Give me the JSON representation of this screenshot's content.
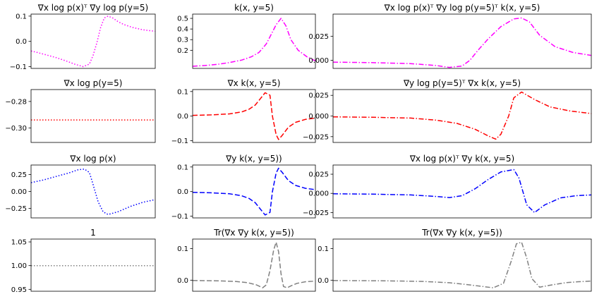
{
  "chart_data": [
    {
      "type": "line",
      "title": "∇x log p(x)ᵀ ∇y log p(y=5)",
      "ylim": [
        -0.107,
        0.108
      ],
      "yticks": [
        -0.1,
        0.0,
        0.1
      ],
      "ytick_labels": [
        "−0.1",
        "0.0",
        "0.1"
      ],
      "grid": false,
      "series": [
        {
          "color": "#ff00ff",
          "linestyle": "dotted",
          "x": [
            0,
            0.05,
            0.12,
            0.2,
            0.28,
            0.35,
            0.42,
            0.47,
            0.5,
            0.53,
            0.56,
            0.59,
            0.62,
            0.66,
            0.7,
            0.75,
            0.82,
            0.9,
            1.0
          ],
          "y": [
            -0.038,
            -0.044,
            -0.053,
            -0.064,
            -0.077,
            -0.09,
            -0.1,
            -0.09,
            -0.055,
            -0.005,
            0.055,
            0.093,
            0.1,
            0.092,
            0.078,
            0.066,
            0.055,
            0.046,
            0.04
          ]
        }
      ]
    },
    {
      "type": "line",
      "title": "k(x, y=5)",
      "ylim": [
        0.03,
        0.54
      ],
      "yticks": [
        0.2,
        0.3,
        0.4,
        0.5
      ],
      "ytick_labels": [
        "0.2",
        "0.3",
        "0.4",
        "0.5"
      ],
      "grid": false,
      "series": [
        {
          "color": "#ff00ff",
          "linestyle": "dashdot",
          "x": [
            0,
            0.1,
            0.2,
            0.3,
            0.4,
            0.48,
            0.54,
            0.6,
            0.64,
            0.68,
            0.72,
            0.76,
            0.8,
            0.86,
            0.93,
            1.0
          ],
          "y": [
            0.05,
            0.057,
            0.068,
            0.085,
            0.108,
            0.14,
            0.18,
            0.26,
            0.35,
            0.44,
            0.5,
            0.43,
            0.3,
            0.2,
            0.14,
            0.1
          ]
        }
      ]
    },
    {
      "type": "line",
      "title": "∇x log p(x)ᵀ ∇y log p(y=5)ᵀ k(x, y=5)",
      "ylim": [
        -0.0085,
        0.048
      ],
      "yticks": [
        0.0,
        0.025
      ],
      "ytick_labels": [
        "0.000",
        "0.025"
      ],
      "grid": false,
      "series": [
        {
          "color": "#ff00ff",
          "linestyle": "dashdot",
          "x": [
            0,
            0.15,
            0.3,
            0.4,
            0.45,
            0.5,
            0.53,
            0.56,
            0.6,
            0.65,
            0.7,
            0.73,
            0.76,
            0.8,
            0.86,
            0.93,
            1.0
          ],
          "y": [
            -0.002,
            -0.0025,
            -0.0035,
            -0.0055,
            -0.0075,
            -0.006,
            0.0,
            0.01,
            0.022,
            0.035,
            0.043,
            0.044,
            0.04,
            0.026,
            0.014,
            0.008,
            0.005
          ]
        }
      ]
    },
    {
      "type": "line",
      "title": "∇x log p(y=5)",
      "ylim": [
        -0.311,
        -0.271
      ],
      "yticks": [
        -0.3,
        -0.28
      ],
      "ytick_labels": [
        "−0.30",
        "−0.28"
      ],
      "grid": false,
      "series": [
        {
          "color": "#ff0000",
          "linestyle": "dotted",
          "x": [
            0,
            1.0
          ],
          "y": [
            -0.294,
            -0.294
          ]
        }
      ]
    },
    {
      "type": "line",
      "title": "∇x k(x, y=5)",
      "ylim": [
        -0.107,
        0.108
      ],
      "yticks": [
        -0.1,
        0.0,
        0.1
      ],
      "ytick_labels": [
        "−0.1",
        "0.0",
        "0.1"
      ],
      "grid": false,
      "series": [
        {
          "color": "#ff0000",
          "linestyle": "dashed",
          "x": [
            0,
            0.15,
            0.3,
            0.4,
            0.46,
            0.51,
            0.55,
            0.59,
            0.63,
            0.65,
            0.68,
            0.7,
            0.73,
            0.78,
            0.84,
            0.92,
            1.0
          ],
          "y": [
            0.003,
            0.005,
            0.009,
            0.017,
            0.028,
            0.045,
            0.07,
            0.095,
            0.085,
            0.0,
            -0.075,
            -0.095,
            -0.078,
            -0.045,
            -0.025,
            -0.013,
            -0.008
          ]
        }
      ]
    },
    {
      "type": "line",
      "title": "∇y log p(y=5)ᵀ ∇x k(x, y=5)",
      "ylim": [
        -0.032,
        0.032
      ],
      "yticks": [
        -0.025,
        0.0,
        0.025
      ],
      "ytick_labels": [
        "−0.025",
        "0.000",
        "0.025"
      ],
      "grid": false,
      "series": [
        {
          "color": "#ff0000",
          "linestyle": "dashdot",
          "x": [
            0,
            0.15,
            0.3,
            0.4,
            0.48,
            0.55,
            0.6,
            0.63,
            0.65,
            0.68,
            0.7,
            0.73,
            0.78,
            0.84,
            0.92,
            1.0
          ],
          "y": [
            -0.001,
            -0.0015,
            -0.0025,
            -0.005,
            -0.009,
            -0.016,
            -0.024,
            -0.028,
            -0.022,
            0.0,
            0.022,
            0.029,
            0.02,
            0.011,
            0.006,
            0.003
          ]
        }
      ]
    },
    {
      "type": "line",
      "title": "∇x log p(x)",
      "ylim": [
        -0.39,
        0.39
      ],
      "yticks": [
        -0.25,
        0.0,
        0.25
      ],
      "ytick_labels": [
        "−0.25",
        "0.00",
        "0.25"
      ],
      "grid": false,
      "series": [
        {
          "color": "#0000ff",
          "linestyle": "dotted",
          "x": [
            0,
            0.1,
            0.2,
            0.3,
            0.38,
            0.43,
            0.47,
            0.5,
            0.54,
            0.58,
            0.62,
            0.7,
            0.8,
            0.9,
            1.0
          ],
          "y": [
            0.13,
            0.17,
            0.22,
            0.27,
            0.32,
            0.33,
            0.28,
            0.1,
            -0.15,
            -0.3,
            -0.34,
            -0.3,
            -0.22,
            -0.16,
            -0.12
          ]
        }
      ]
    },
    {
      "type": "line",
      "title": "∇y k(x, y=5))",
      "ylim": [
        -0.107,
        0.108
      ],
      "yticks": [
        -0.1,
        0.0,
        0.1
      ],
      "ytick_labels": [
        "−0.1",
        "0.0",
        "0.1"
      ],
      "grid": false,
      "series": [
        {
          "color": "#0000ff",
          "linestyle": "dashed",
          "x": [
            0,
            0.15,
            0.3,
            0.4,
            0.46,
            0.51,
            0.55,
            0.59,
            0.63,
            0.65,
            0.68,
            0.7,
            0.73,
            0.78,
            0.84,
            0.92,
            1.0
          ],
          "y": [
            -0.003,
            -0.005,
            -0.009,
            -0.017,
            -0.028,
            -0.045,
            -0.07,
            -0.095,
            -0.085,
            0.0,
            0.075,
            0.095,
            0.078,
            0.045,
            0.025,
            0.013,
            0.008
          ]
        }
      ]
    },
    {
      "type": "line",
      "title": "∇x log p(x)ᵀ ∇y k(x, y=5)",
      "ylim": [
        -0.032,
        0.037
      ],
      "yticks": [
        -0.025,
        0.0,
        0.025
      ],
      "ytick_labels": [
        "−0.025",
        "0.000",
        "0.025"
      ],
      "grid": false,
      "series": [
        {
          "color": "#0000ff",
          "linestyle": "dashdot",
          "x": [
            0,
            0.15,
            0.3,
            0.4,
            0.45,
            0.5,
            0.55,
            0.6,
            0.65,
            0.7,
            0.72,
            0.75,
            0.78,
            0.82,
            0.88,
            0.94,
            1.0
          ],
          "y": [
            -0.0005,
            -0.001,
            -0.002,
            -0.004,
            -0.0055,
            -0.003,
            0.006,
            0.018,
            0.028,
            0.031,
            0.02,
            -0.015,
            -0.025,
            -0.015,
            -0.006,
            -0.003,
            -0.002
          ]
        }
      ]
    },
    {
      "type": "line",
      "title": "1",
      "ylim": [
        0.946,
        1.056
      ],
      "yticks": [
        0.95,
        1.0,
        1.05
      ],
      "ytick_labels": [
        "0.95",
        "1.00",
        "1.05"
      ],
      "grid": false,
      "series": [
        {
          "color": "#808080",
          "linestyle": "dotted",
          "x": [
            0,
            1.0
          ],
          "y": [
            1.0,
            1.0
          ]
        }
      ]
    },
    {
      "type": "line",
      "title": "Tr(∇x ∇y k(x, y=5))",
      "ylim": [
        -0.035,
        0.13
      ],
      "yticks": [
        0.0,
        0.1
      ],
      "ytick_labels": [
        "0.0",
        "0.1"
      ],
      "grid": false,
      "series": [
        {
          "color": "#808080",
          "linestyle": "dashed",
          "x": [
            0,
            0.2,
            0.35,
            0.45,
            0.52,
            0.57,
            0.6,
            0.63,
            0.66,
            0.68,
            0.7,
            0.72,
            0.74,
            0.77,
            0.8,
            0.85,
            0.92,
            1.0
          ],
          "y": [
            -0.001,
            -0.002,
            -0.004,
            -0.008,
            -0.015,
            -0.024,
            -0.015,
            0.03,
            0.095,
            0.12,
            0.09,
            0.02,
            -0.02,
            -0.024,
            -0.018,
            -0.01,
            -0.005,
            -0.003
          ]
        }
      ]
    },
    {
      "type": "line",
      "title": "Tr(∇x ∇y k(x, y=5))",
      "ylim": [
        -0.035,
        0.13
      ],
      "yticks": [
        0.0,
        0.1
      ],
      "ytick_labels": [
        "0.0",
        "0.1"
      ],
      "grid": false,
      "series": [
        {
          "color": "#808080",
          "linestyle": "dashdot",
          "x": [
            0,
            0.2,
            0.35,
            0.45,
            0.52,
            0.58,
            0.62,
            0.66,
            0.69,
            0.71,
            0.73,
            0.75,
            0.77,
            0.8,
            0.84,
            0.9,
            0.95,
            1.0
          ],
          "y": [
            -0.001,
            -0.002,
            -0.004,
            -0.008,
            -0.014,
            -0.02,
            -0.024,
            -0.01,
            0.06,
            0.115,
            0.12,
            0.07,
            0.005,
            -0.022,
            -0.016,
            -0.008,
            -0.005,
            -0.003
          ]
        }
      ]
    }
  ]
}
